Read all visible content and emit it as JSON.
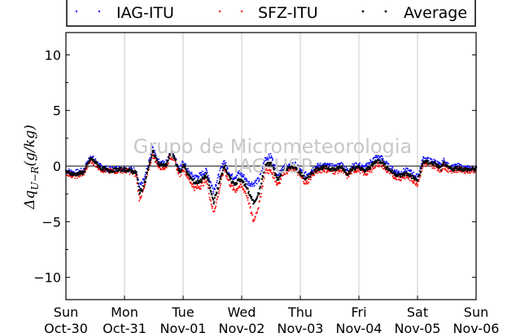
{
  "chart_data": {
    "type": "scatter",
    "title": "",
    "ylabel": "Δq_{U-R}(g/kg)",
    "ylim": [
      -12,
      12
    ],
    "yticks": [
      -10,
      -5,
      0,
      5,
      10
    ],
    "ytick_labels": [
      "−10",
      "−5",
      "0",
      "5",
      "10"
    ],
    "xlim": [
      0,
      7
    ],
    "x_unit": "days since Sun Oct-30 00:00",
    "xtick_labels": [
      {
        "day": "Sun",
        "date": "Oct-30"
      },
      {
        "day": "Mon",
        "date": "Oct-31"
      },
      {
        "day": "Tue",
        "date": "Nov-01"
      },
      {
        "day": "Wed",
        "date": "Nov-02"
      },
      {
        "day": "Thu",
        "date": "Nov-03"
      },
      {
        "day": "Fri",
        "date": "Nov-04"
      },
      {
        "day": "Sat",
        "date": "Nov-05"
      },
      {
        "day": "Sun",
        "date": "Nov-06"
      }
    ],
    "grid": "vertical",
    "zero_line": true,
    "watermark": "Grupo de Micrometeorologia",
    "watermark2": "IAG-USP",
    "legend": {
      "placement": "top",
      "entries": [
        "IAG-ITU",
        "SFZ-ITU",
        "Average"
      ]
    },
    "series": [
      {
        "name": "IAG-ITU",
        "color": "#0000ff",
        "x": [
          0.0,
          0.15,
          0.3,
          0.42,
          0.5,
          0.6,
          0.75,
          0.9,
          1.0,
          1.1,
          1.2,
          1.25,
          1.3,
          1.35,
          1.4,
          1.48,
          1.58,
          1.7,
          1.78,
          1.85,
          1.9,
          1.95,
          2.0,
          2.1,
          2.2,
          2.3,
          2.4,
          2.45,
          2.52,
          2.6,
          2.7,
          2.75,
          2.8,
          2.85,
          2.9,
          2.95,
          3.0,
          3.05,
          3.1,
          3.2,
          3.3,
          3.4,
          3.5,
          3.55,
          3.6,
          3.65,
          3.7,
          3.8,
          3.9,
          4.0,
          4.1,
          4.2,
          4.3,
          4.4,
          4.5,
          4.6,
          4.7,
          4.8,
          4.9,
          5.0,
          5.1,
          5.2,
          5.3,
          5.4,
          5.45,
          5.5,
          5.6,
          5.7,
          5.8,
          5.9,
          6.0,
          6.1,
          6.2,
          6.3,
          6.4,
          6.45,
          6.5,
          6.6,
          6.7,
          6.8,
          6.9,
          7.0
        ],
        "y": [
          -0.4,
          -0.6,
          -0.4,
          0.9,
          0.5,
          -0.1,
          -0.3,
          -0.2,
          -0.2,
          -0.3,
          -0.4,
          -1.8,
          -1.6,
          -1.0,
          0.0,
          1.6,
          0.4,
          0.2,
          1.3,
          1.0,
          0.1,
          -0.3,
          0.4,
          -0.6,
          -1.0,
          -0.8,
          -0.4,
          -1.2,
          -2.2,
          -1.0,
          0.5,
          -0.2,
          -0.7,
          -1.0,
          -0.9,
          -0.6,
          -0.8,
          -1.0,
          -1.5,
          -1.6,
          -1.2,
          0.7,
          0.9,
          0.2,
          -0.7,
          -0.5,
          -0.1,
          0.0,
          0.2,
          -0.4,
          -0.8,
          -0.3,
          0.0,
          0.1,
          0.0,
          -0.1,
          0.2,
          -0.4,
          0.0,
          0.1,
          -0.2,
          0.4,
          0.8,
          0.7,
          0.3,
          0.0,
          -0.4,
          -0.6,
          -0.4,
          -0.6,
          -1.0,
          0.7,
          0.5,
          0.4,
          0.0,
          0.5,
          0.1,
          -0.1,
          0.0,
          -0.2,
          -0.2,
          -0.2
        ]
      },
      {
        "name": "SFZ-ITU",
        "color": "#ff0000",
        "x": [
          0.0,
          0.15,
          0.3,
          0.42,
          0.5,
          0.6,
          0.75,
          0.9,
          1.0,
          1.1,
          1.2,
          1.25,
          1.3,
          1.35,
          1.4,
          1.48,
          1.58,
          1.7,
          1.78,
          1.85,
          1.9,
          1.95,
          2.0,
          2.1,
          2.2,
          2.3,
          2.4,
          2.45,
          2.52,
          2.6,
          2.7,
          2.75,
          2.8,
          2.85,
          2.9,
          2.95,
          3.0,
          3.05,
          3.1,
          3.2,
          3.3,
          3.4,
          3.5,
          3.55,
          3.6,
          3.65,
          3.7,
          3.8,
          3.9,
          4.0,
          4.1,
          4.2,
          4.3,
          4.4,
          4.5,
          4.6,
          4.7,
          4.8,
          4.9,
          5.0,
          5.1,
          5.2,
          5.3,
          5.4,
          5.45,
          5.5,
          5.6,
          5.7,
          5.8,
          5.9,
          6.0,
          6.1,
          6.2,
          6.3,
          6.4,
          6.45,
          6.5,
          6.6,
          6.7,
          6.8,
          6.9,
          7.0
        ],
        "y": [
          -0.6,
          -0.9,
          -0.7,
          0.5,
          0.2,
          -0.3,
          -0.5,
          -0.4,
          -0.4,
          -0.5,
          -0.8,
          -2.9,
          -2.5,
          -1.8,
          -0.4,
          1.0,
          0.0,
          -0.2,
          0.9,
          0.6,
          -0.3,
          -0.8,
          -0.1,
          -1.2,
          -2.0,
          -1.8,
          -1.2,
          -2.6,
          -4.2,
          -2.6,
          -0.2,
          -1.0,
          -1.6,
          -2.0,
          -2.2,
          -1.8,
          -1.9,
          -2.2,
          -2.8,
          -5.0,
          -3.4,
          -0.4,
          -0.5,
          -0.9,
          -1.6,
          -1.4,
          -0.6,
          -0.4,
          -0.2,
          -0.9,
          -1.6,
          -0.8,
          -0.4,
          -0.3,
          -0.4,
          -0.5,
          -0.3,
          -0.9,
          -0.4,
          -0.3,
          -0.7,
          -0.4,
          0.2,
          0.1,
          -0.3,
          -0.5,
          -0.9,
          -1.1,
          -0.9,
          -1.2,
          -1.6,
          0.2,
          0.1,
          0.0,
          -0.4,
          0.1,
          -0.3,
          -0.4,
          -0.3,
          -0.4,
          -0.4,
          -0.3
        ]
      },
      {
        "name": "Average",
        "color": "#000000",
        "x": [
          0.0,
          0.15,
          0.3,
          0.42,
          0.5,
          0.6,
          0.75,
          0.9,
          1.0,
          1.1,
          1.2,
          1.25,
          1.3,
          1.35,
          1.4,
          1.48,
          1.58,
          1.7,
          1.78,
          1.85,
          1.9,
          1.95,
          2.0,
          2.1,
          2.2,
          2.3,
          2.4,
          2.45,
          2.52,
          2.6,
          2.7,
          2.75,
          2.8,
          2.85,
          2.9,
          2.95,
          3.0,
          3.05,
          3.1,
          3.2,
          3.3,
          3.4,
          3.5,
          3.55,
          3.6,
          3.65,
          3.7,
          3.8,
          3.9,
          4.0,
          4.1,
          4.2,
          4.3,
          4.4,
          4.5,
          4.6,
          4.7,
          4.8,
          4.9,
          5.0,
          5.1,
          5.2,
          5.3,
          5.4,
          5.45,
          5.5,
          5.6,
          5.7,
          5.8,
          5.9,
          6.0,
          6.1,
          6.2,
          6.3,
          6.4,
          6.45,
          6.5,
          6.6,
          6.7,
          6.8,
          6.9,
          7.0
        ],
        "y": [
          -0.5,
          -0.75,
          -0.55,
          0.7,
          0.35,
          -0.2,
          -0.4,
          -0.3,
          -0.3,
          -0.4,
          -0.6,
          -2.35,
          -2.05,
          -1.4,
          -0.2,
          1.3,
          0.2,
          0.0,
          1.1,
          0.8,
          -0.1,
          -0.55,
          0.15,
          -0.9,
          -1.5,
          -1.3,
          -0.8,
          -1.9,
          -3.2,
          -1.8,
          0.15,
          -0.6,
          -1.15,
          -1.5,
          -1.55,
          -1.2,
          -1.35,
          -1.6,
          -2.15,
          -3.3,
          -2.3,
          0.15,
          0.2,
          -0.35,
          -1.15,
          -0.95,
          -0.35,
          -0.2,
          0.0,
          -0.65,
          -1.2,
          -0.55,
          -0.2,
          -0.1,
          -0.2,
          -0.3,
          -0.05,
          -0.65,
          -0.2,
          -0.1,
          -0.45,
          0.0,
          0.5,
          0.4,
          0.0,
          -0.25,
          -0.65,
          -0.85,
          -0.65,
          -0.9,
          -1.3,
          0.45,
          0.3,
          0.2,
          -0.2,
          0.3,
          -0.1,
          -0.25,
          -0.15,
          -0.3,
          -0.3,
          -0.25
        ]
      }
    ]
  }
}
